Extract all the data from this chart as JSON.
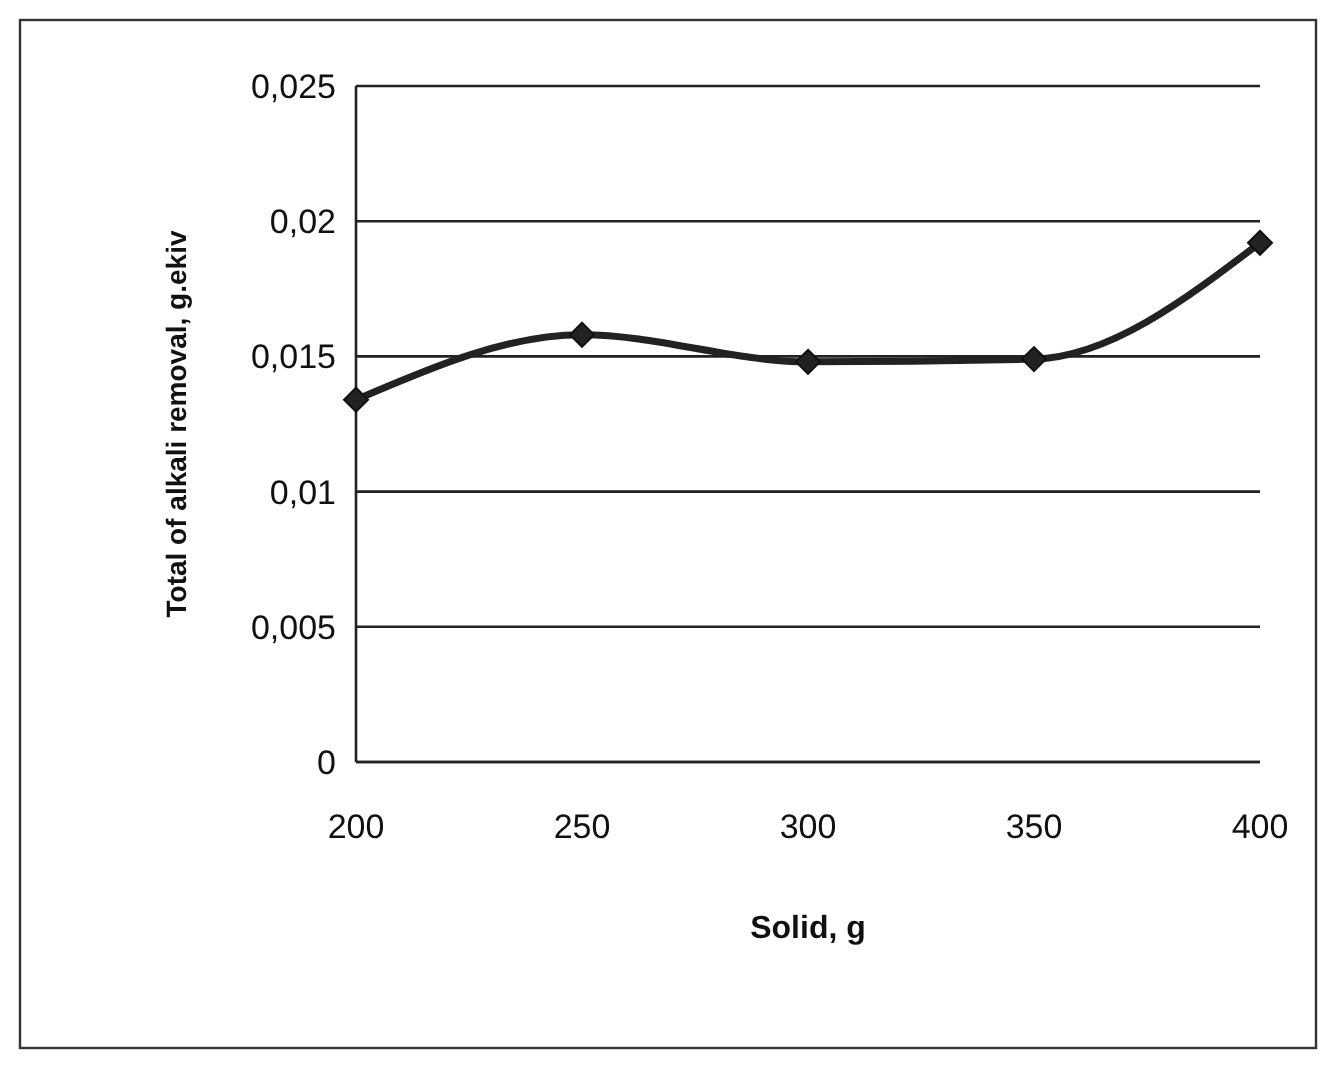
{
  "chart_data": {
    "type": "line",
    "xlabel": "Solid, g",
    "ylabel": "Total of alkali removal, g.ekiv",
    "categories": [
      "200",
      "250",
      "300",
      "350",
      "400"
    ],
    "series": [
      {
        "color": "#222222",
        "values": [
          0.0134,
          0.0158,
          0.0148,
          0.0149,
          0.0192
        ]
      }
    ],
    "ylim": [
      0,
      0.025
    ],
    "yticks": [
      {
        "value": 0,
        "label": "0"
      },
      {
        "value": 0.005,
        "label": "0,005"
      },
      {
        "value": 0.01,
        "label": "0,01"
      },
      {
        "value": 0.015,
        "label": "0,015"
      },
      {
        "value": 0.02,
        "label": "0,02"
      },
      {
        "value": 0.025,
        "label": "0,025"
      }
    ],
    "grid": "y",
    "marker": "diamond",
    "line_style": "solid"
  }
}
